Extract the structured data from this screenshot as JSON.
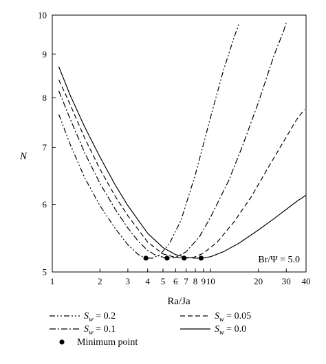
{
  "chart_data": {
    "type": "line",
    "xlabel": "Ra/Ja",
    "ylabel": "N",
    "xscale": "log",
    "yscale": "log",
    "xlim": [
      1,
      40
    ],
    "ylim": [
      5,
      10
    ],
    "x_ticks": [
      {
        "value": 1,
        "label": "1"
      },
      {
        "value": 2,
        "label": "2"
      },
      {
        "value": 3,
        "label": "3"
      },
      {
        "value": 4,
        "label": "4"
      },
      {
        "value": 5,
        "label": "5"
      },
      {
        "value": 6,
        "label": "6"
      },
      {
        "value": 7,
        "label": "7"
      },
      {
        "value": 8,
        "label": "8"
      },
      {
        "value": 9,
        "label": "9"
      },
      {
        "value": 10,
        "label": "10"
      },
      {
        "value": 20,
        "label": "20"
      },
      {
        "value": 30,
        "label": "30"
      },
      {
        "value": 40,
        "label": "40"
      }
    ],
    "y_ticks": [
      {
        "value": 5,
        "label": "5"
      },
      {
        "value": 6,
        "label": "6"
      },
      {
        "value": 7,
        "label": "7"
      },
      {
        "value": 8,
        "label": "8"
      },
      {
        "value": 9,
        "label": "9"
      },
      {
        "value": 10,
        "label": "10"
      }
    ],
    "annotation": "Br/Ψ = 5.0",
    "series": [
      {
        "name": "S_w = 0.2",
        "style": "dash-dot-dot",
        "x": [
          1.1,
          1.3,
          1.6,
          2.0,
          2.5,
          3.0,
          3.5,
          3.9,
          4.3,
          4.8,
          5.5,
          6.5,
          8.0,
          10.0,
          12.0,
          14.0,
          15.2
        ],
        "y": [
          7.65,
          7.05,
          6.45,
          5.98,
          5.62,
          5.38,
          5.24,
          5.19,
          5.19,
          5.24,
          5.4,
          5.75,
          6.5,
          7.6,
          8.6,
          9.4,
          9.8
        ]
      },
      {
        "name": "S_w = 0.1",
        "style": "dash-dot",
        "x": [
          1.1,
          1.3,
          1.6,
          2.0,
          2.5,
          3.0,
          3.5,
          4.0,
          4.5,
          5.3,
          6.0,
          7.0,
          8.5,
          10.0,
          13.0,
          16.0,
          20.0,
          25.0,
          29.0,
          30.0
        ],
        "y": [
          8.15,
          7.55,
          6.9,
          6.35,
          5.92,
          5.63,
          5.43,
          5.3,
          5.23,
          5.19,
          5.2,
          5.28,
          5.5,
          5.8,
          6.4,
          7.05,
          7.9,
          8.95,
          9.6,
          9.8
        ]
      },
      {
        "name": "S_w = 0.05",
        "style": "dashed",
        "x": [
          1.1,
          1.3,
          1.6,
          2.0,
          2.5,
          3.0,
          4.0,
          5.0,
          6.0,
          6.8,
          7.8,
          9.0,
          11.0,
          14.0,
          18.0,
          23.0,
          29.0,
          35.0,
          39.0
        ],
        "y": [
          8.4,
          7.85,
          7.18,
          6.6,
          6.13,
          5.82,
          5.42,
          5.25,
          5.2,
          5.19,
          5.2,
          5.26,
          5.42,
          5.72,
          6.12,
          6.62,
          7.12,
          7.55,
          7.75
        ]
      },
      {
        "name": "S_w = 0.0",
        "style": "solid",
        "x": [
          1.1,
          1.3,
          1.6,
          2.0,
          2.5,
          3.0,
          4.0,
          5.0,
          6.0,
          7.0,
          8.0,
          8.7,
          10.0,
          12.0,
          15.0,
          20.0,
          25.0,
          30.0,
          35.0,
          40.0
        ],
        "y": [
          8.7,
          8.05,
          7.4,
          6.82,
          6.32,
          5.98,
          5.55,
          5.34,
          5.24,
          5.2,
          5.19,
          5.19,
          5.21,
          5.28,
          5.4,
          5.6,
          5.77,
          5.92,
          6.05,
          6.15
        ]
      }
    ],
    "minimum_points": {
      "name": "Minimum point",
      "x": [
        3.9,
        5.3,
        6.8,
        8.7
      ],
      "y": [
        5.19,
        5.19,
        5.19,
        5.19
      ]
    },
    "legend": {
      "placement": "bottom",
      "items": [
        {
          "prefix": "S",
          "sub": "w",
          "suffix": " = 0.2",
          "style": "dash-dot-dot"
        },
        {
          "prefix": "S",
          "sub": "w",
          "suffix": " = 0.05",
          "style": "dashed"
        },
        {
          "prefix": "S",
          "sub": "w",
          "suffix": " = 0.1",
          "style": "dash-dot"
        },
        {
          "prefix": "S",
          "sub": "w",
          "suffix": " = 0.0",
          "style": "solid"
        },
        {
          "prefix": "Minimum point",
          "sub": "",
          "suffix": "",
          "style": "marker"
        }
      ]
    }
  }
}
